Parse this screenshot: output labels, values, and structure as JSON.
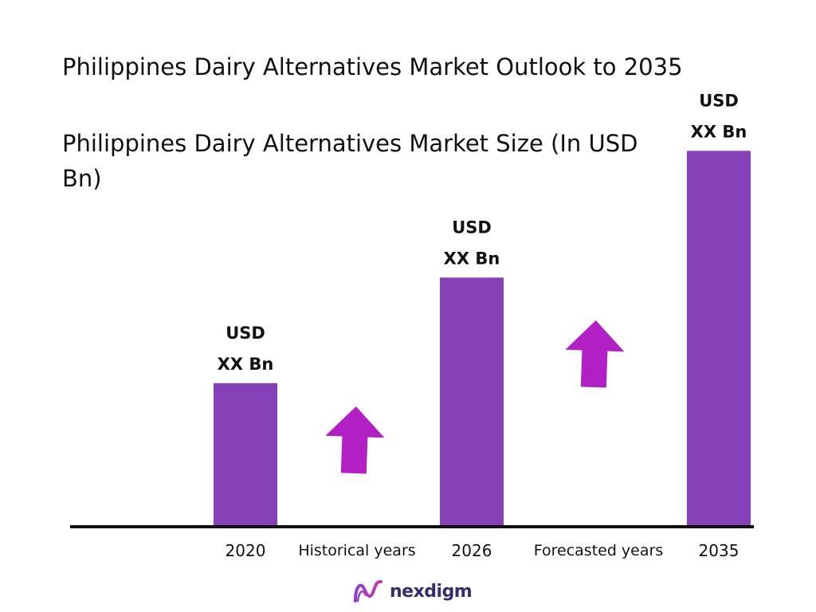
{
  "chart_data": {
    "type": "bar",
    "title": "Philippines Dairy Alternatives Market Outlook to 2035",
    "subtitle": "Philippines Dairy Alternatives Market Size (In USD Bn)",
    "categories": [
      "2020",
      "2026",
      "2035"
    ],
    "relative_values": [
      0.34,
      0.59,
      0.89
    ],
    "data_labels": [
      {
        "line1": "USD",
        "line2": "XX Bn"
      },
      {
        "line1": "USD",
        "line2": "XX Bn"
      },
      {
        "line1": "USD",
        "line2": "XX Bn"
      }
    ],
    "period_labels": [
      "Historical years",
      "Forecasted years"
    ],
    "bar_color": "#8640b8",
    "arrow_color": "#b21fc4",
    "axis_color": "#111111"
  },
  "logo": {
    "text": "nexdigm",
    "color": "#3a2a6e"
  }
}
